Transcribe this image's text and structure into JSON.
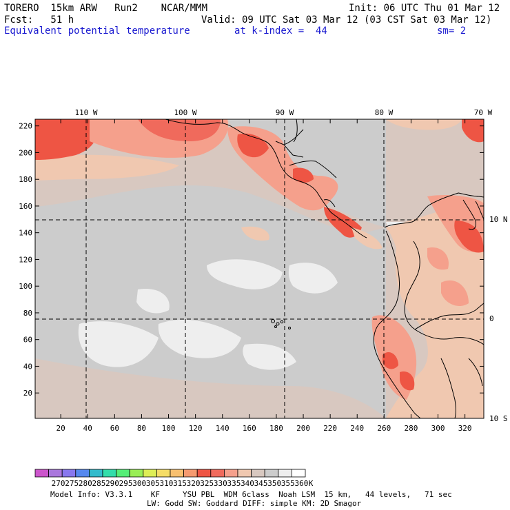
{
  "header": {
    "model": "TORERO  15km ARW   Run2    NCAR/MMM",
    "init": "Init: 06 UTC Thu 01 Mar 12",
    "fcst": "Fcst:   51 h",
    "valid": "Valid: 09 UTC Sat 03 Mar 12 (03 CST Sat 03 Mar 12)",
    "field": "Equivalent potential temperature",
    "level": "at k-index =  44",
    "smooth": "sm= 2"
  },
  "map": {
    "lon_labels": [
      "110 W",
      "100 W",
      "90 W",
      "80 W",
      "70 W"
    ],
    "lat_labels": [
      "10 N",
      "0",
      "10 S"
    ],
    "x_ticks": [
      "20",
      "40",
      "60",
      "80",
      "100",
      "120",
      "140",
      "160",
      "180",
      "200",
      "220",
      "240",
      "260",
      "280",
      "300",
      "320"
    ],
    "y_ticks": [
      "20",
      "40",
      "60",
      "80",
      "100",
      "120",
      "140",
      "160",
      "180",
      "200",
      "220"
    ],
    "x_range": [
      1,
      334
    ],
    "y_range": [
      1,
      225
    ]
  },
  "legend": {
    "labels": [
      "270",
      "275",
      "280",
      "285",
      "290",
      "295",
      "300",
      "305",
      "310",
      "315",
      "320",
      "325",
      "330",
      "335",
      "340",
      "345",
      "350",
      "355",
      "360"
    ],
    "unit": "K",
    "colors": [
      "#cc55cc",
      "#aa77dd",
      "#8877ee",
      "#5588ee",
      "#33bbcc",
      "#33ddaa",
      "#55ee77",
      "#99ee55",
      "#ddee55",
      "#f5dd66",
      "#f8c070",
      "#f59a70",
      "#ee5544",
      "#f06a5c",
      "#f5a08c",
      "#f0c8b0",
      "#d8c8c0",
      "#cccccc",
      "#eeeeee",
      "#ffffff"
    ]
  },
  "footer": {
    "line1": "Model Info: V3.3.1    KF     YSU PBL  WDM 6class  Noah LSM  15 km,   44 levels,   71 sec",
    "line2": "LW: Godd SW: Goddard DIFF: simple KM: 2D Smagor"
  }
}
